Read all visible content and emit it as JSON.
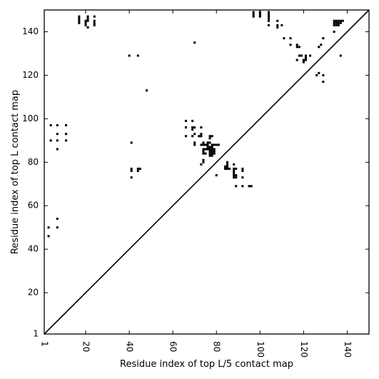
{
  "chart_data": {
    "type": "scatter",
    "title": "",
    "xlabel": "Residue index of top L/5 contact map",
    "ylabel": "Residue index of top L contact map",
    "xlim": [
      1,
      150
    ],
    "ylim": [
      1,
      150
    ],
    "x_ticks": [
      1,
      20,
      40,
      60,
      80,
      100,
      120,
      140
    ],
    "y_ticks": [
      1,
      20,
      40,
      60,
      80,
      100,
      120,
      140
    ],
    "x_tick_labels_rotated": true,
    "grid": false,
    "diagonal_line": true,
    "marker": "square",
    "marker_color": "#000000",
    "points": [
      [
        17,
        145
      ],
      [
        17,
        144
      ],
      [
        17,
        146
      ],
      [
        17,
        147
      ],
      [
        20,
        143
      ],
      [
        20,
        144
      ],
      [
        20,
        145
      ],
      [
        21,
        142
      ],
      [
        21,
        145
      ],
      [
        21,
        146
      ],
      [
        21,
        147
      ],
      [
        24,
        143
      ],
      [
        24,
        144
      ],
      [
        24,
        145
      ],
      [
        24,
        147
      ],
      [
        97,
        147
      ],
      [
        97,
        148
      ],
      [
        97,
        149
      ],
      [
        100,
        147
      ],
      [
        100,
        148
      ],
      [
        100,
        149
      ],
      [
        104,
        143
      ],
      [
        104,
        145
      ],
      [
        104,
        146
      ],
      [
        104,
        147
      ],
      [
        104,
        148
      ],
      [
        104,
        149
      ],
      [
        108,
        142
      ],
      [
        108,
        143
      ],
      [
        108,
        145
      ],
      [
        110,
        143
      ],
      [
        111,
        137
      ],
      [
        114,
        134
      ],
      [
        114,
        137
      ],
      [
        117,
        133
      ],
      [
        117,
        134
      ],
      [
        118,
        129
      ],
      [
        118,
        133
      ],
      [
        117,
        127
      ],
      [
        119,
        129
      ],
      [
        120,
        126
      ],
      [
        120,
        127
      ],
      [
        121,
        127
      ],
      [
        121,
        128
      ],
      [
        121,
        129
      ],
      [
        123,
        129
      ],
      [
        126,
        120
      ],
      [
        127,
        121
      ],
      [
        127,
        133
      ],
      [
        128,
        134
      ],
      [
        129,
        120
      ],
      [
        129,
        117
      ],
      [
        129,
        137
      ],
      [
        134,
        140
      ],
      [
        134,
        143
      ],
      [
        134,
        144
      ],
      [
        134,
        145
      ],
      [
        135,
        143
      ],
      [
        135,
        144
      ],
      [
        135,
        145
      ],
      [
        136,
        143
      ],
      [
        136,
        144
      ],
      [
        136,
        145
      ],
      [
        137,
        144
      ],
      [
        137,
        145
      ],
      [
        138,
        145
      ],
      [
        137,
        129
      ],
      [
        40,
        129
      ],
      [
        44,
        129
      ],
      [
        48,
        113
      ],
      [
        70,
        135
      ],
      [
        4,
        90
      ],
      [
        4,
        97
      ],
      [
        7,
        86
      ],
      [
        7,
        90
      ],
      [
        7,
        93
      ],
      [
        7,
        97
      ],
      [
        11,
        90
      ],
      [
        11,
        93
      ],
      [
        11,
        97
      ],
      [
        41,
        89
      ],
      [
        41,
        77
      ],
      [
        41,
        76
      ],
      [
        41,
        73
      ],
      [
        44,
        76
      ],
      [
        44,
        77
      ],
      [
        45,
        77
      ],
      [
        66,
        99
      ],
      [
        66,
        96
      ],
      [
        66,
        92
      ],
      [
        69,
        99
      ],
      [
        69,
        96
      ],
      [
        69,
        95
      ],
      [
        69,
        92
      ],
      [
        70,
        96
      ],
      [
        70,
        93
      ],
      [
        70,
        89
      ],
      [
        70,
        88
      ],
      [
        72,
        92
      ],
      [
        73,
        96
      ],
      [
        73,
        93
      ],
      [
        73,
        92
      ],
      [
        73,
        88
      ],
      [
        74,
        89
      ],
      [
        74,
        88
      ],
      [
        74,
        86
      ],
      [
        74,
        85
      ],
      [
        74,
        84
      ],
      [
        74,
        81
      ],
      [
        74,
        80
      ],
      [
        73,
        79
      ],
      [
        75,
        88
      ],
      [
        75,
        86
      ],
      [
        75,
        84
      ],
      [
        76,
        89
      ],
      [
        76,
        88
      ],
      [
        76,
        87
      ],
      [
        76,
        86
      ],
      [
        77,
        92
      ],
      [
        77,
        91
      ],
      [
        77,
        89
      ],
      [
        77,
        87
      ],
      [
        77,
        86
      ],
      [
        77,
        85
      ],
      [
        77,
        84
      ],
      [
        77,
        83
      ],
      [
        78,
        92
      ],
      [
        78,
        88
      ],
      [
        78,
        87
      ],
      [
        78,
        86
      ],
      [
        78,
        85
      ],
      [
        78,
        84
      ],
      [
        78,
        83
      ],
      [
        79,
        88
      ],
      [
        79,
        86
      ],
      [
        79,
        85
      ],
      [
        79,
        84
      ],
      [
        80,
        88
      ],
      [
        81,
        88
      ],
      [
        80,
        74
      ],
      [
        84,
        77
      ],
      [
        84,
        78
      ],
      [
        85,
        77
      ],
      [
        85,
        78
      ],
      [
        85,
        79
      ],
      [
        85,
        80
      ],
      [
        86,
        77
      ],
      [
        88,
        79
      ],
      [
        88,
        77
      ],
      [
        88,
        76
      ],
      [
        88,
        75
      ],
      [
        88,
        74
      ],
      [
        88,
        73
      ],
      [
        89,
        77
      ],
      [
        89,
        74
      ],
      [
        89,
        73
      ],
      [
        89,
        69
      ],
      [
        92,
        77
      ],
      [
        92,
        76
      ],
      [
        92,
        73
      ],
      [
        92,
        69
      ],
      [
        95,
        69
      ],
      [
        96,
        69
      ],
      [
        3,
        50
      ],
      [
        3,
        46
      ],
      [
        7,
        54
      ],
      [
        7,
        50
      ]
    ]
  }
}
